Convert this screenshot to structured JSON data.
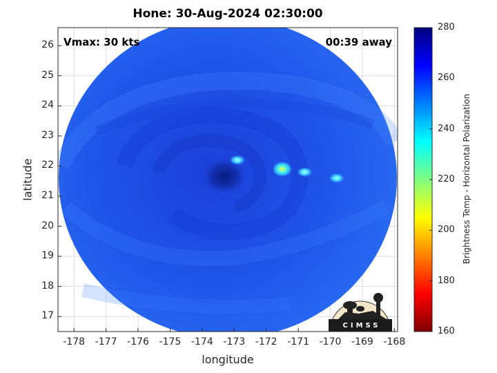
{
  "chart_data": {
    "type": "heatmap",
    "title": "Hone: 30-Aug-2024 02:30:00",
    "xlabel": "longitude",
    "ylabel": "latitude",
    "xlim": [
      -178.5,
      -167.9
    ],
    "ylim": [
      16.5,
      26.6
    ],
    "x_ticks": [
      "-178",
      "-177",
      "-176",
      "-175",
      "-174",
      "-173",
      "-172",
      "-171",
      "-170",
      "-169",
      "-168"
    ],
    "y_ticks": [
      "17",
      "18",
      "19",
      "20",
      "21",
      "22",
      "23",
      "24",
      "25",
      "26"
    ],
    "grid": true,
    "storm_center": {
      "lon": -173.3,
      "lat": 21.6
    },
    "warm_spots": [
      {
        "lon": -172.9,
        "lat": 22.2,
        "tb": 230
      },
      {
        "lon": -171.5,
        "lat": 21.9,
        "tb": 205
      },
      {
        "lon": -170.8,
        "lat": 21.8,
        "tb": 225
      },
      {
        "lon": -169.8,
        "lat": 21.6,
        "tb": 232
      }
    ],
    "colorbar": {
      "label": "Brightness Temp - Horizontal Polarization",
      "range": [
        160,
        280
      ],
      "ticks": [
        "280",
        "260",
        "240",
        "220",
        "200",
        "180",
        "160"
      ],
      "colors": [
        "#7f0000",
        "#ff0000",
        "#ff8000",
        "#ffff00",
        "#80ff80",
        "#00ffff",
        "#0080ff",
        "#0000ff",
        "#00007f"
      ]
    },
    "annotations": {
      "vmax": "Vmax: 30 kts",
      "time_offset": "00:39 away"
    }
  },
  "logo": {
    "text": "CIMSS"
  }
}
